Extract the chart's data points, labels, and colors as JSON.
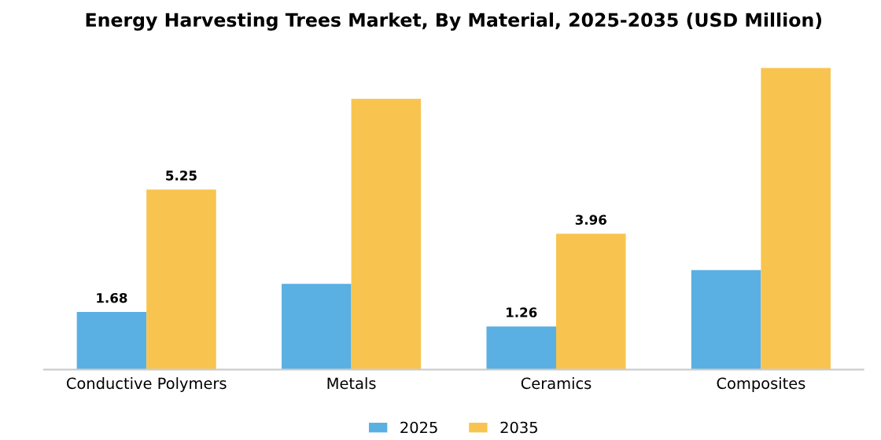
{
  "chart_data": {
    "type": "bar",
    "title": "Energy Harvesting Trees Market, By Material, 2025-2035 (USD Million)",
    "categories": [
      "Conductive Polymers",
      "Metals",
      "Ceramics",
      "Composites"
    ],
    "series": [
      {
        "name": "2025",
        "color": "#5aafe3",
        "values": [
          1.68,
          2.5,
          1.26,
          2.9
        ],
        "value_labels": [
          "1.68",
          null,
          "1.26",
          null
        ]
      },
      {
        "name": "2035",
        "color": "#f8c44f",
        "values": [
          5.25,
          7.9,
          3.96,
          8.8
        ],
        "value_labels": [
          "5.25",
          null,
          "3.96",
          null
        ]
      }
    ],
    "legend": "bottom",
    "grid": false
  }
}
